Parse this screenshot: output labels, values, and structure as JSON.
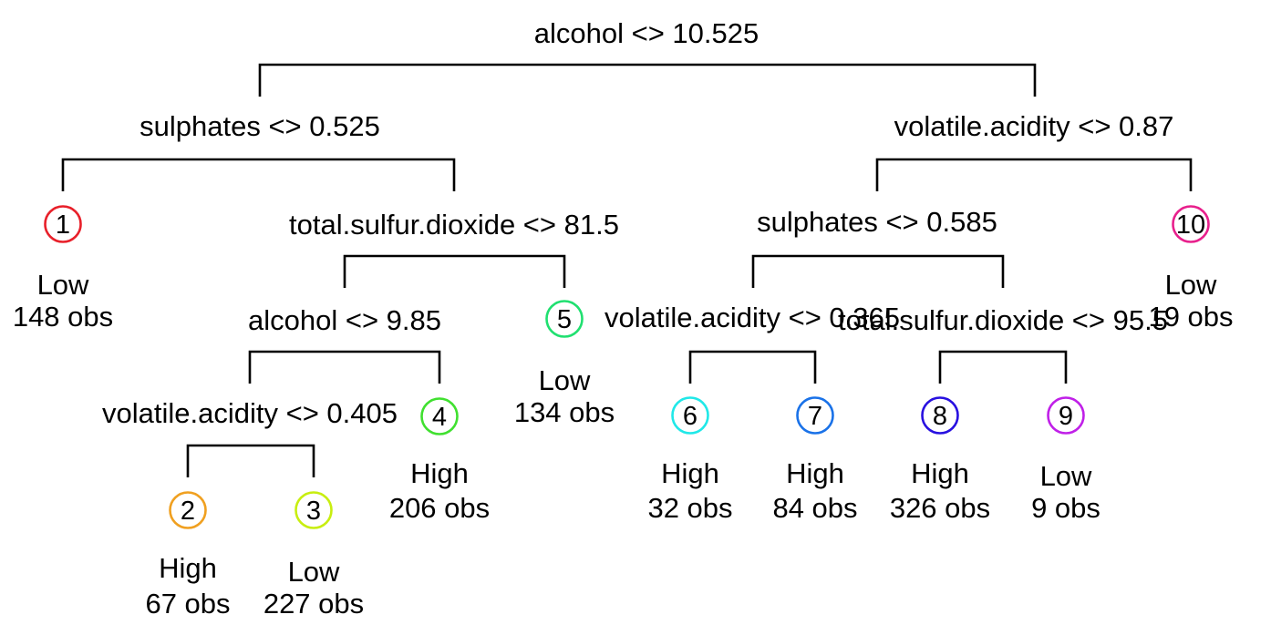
{
  "tree": {
    "splits": [
      {
        "id": "root",
        "label": "alcohol <> 10.525"
      },
      {
        "id": "s-left",
        "label": "sulphates <> 0.525"
      },
      {
        "id": "s-right",
        "label": "volatile.acidity <> 0.87"
      },
      {
        "id": "s-left-right",
        "label": "total.sulfur.dioxide <> 81.5"
      },
      {
        "id": "s-right-left",
        "label": "sulphates <> 0.585"
      },
      {
        "id": "s-lrl",
        "label": "alcohol <> 9.85"
      },
      {
        "id": "s-rll",
        "label": "volatile.acidity <> 0.365"
      },
      {
        "id": "s-rlr",
        "label": "total.sulfur.dioxide <> 95.5"
      },
      {
        "id": "s-lrll",
        "label": "volatile.acidity <> 0.405"
      }
    ],
    "leaves": [
      {
        "number": "1",
        "class": "Low",
        "obs": "148 obs",
        "color": "#e8202a"
      },
      {
        "number": "2",
        "class": "High",
        "obs": "67 obs",
        "color": "#f0a020"
      },
      {
        "number": "3",
        "class": "Low",
        "obs": "227 obs",
        "color": "#c8ee10"
      },
      {
        "number": "4",
        "class": "High",
        "obs": "206 obs",
        "color": "#40e030"
      },
      {
        "number": "5",
        "class": "Low",
        "obs": "134 obs",
        "color": "#20e070"
      },
      {
        "number": "6",
        "class": "High",
        "obs": "32 obs",
        "color": "#20e8e8"
      },
      {
        "number": "7",
        "class": "High",
        "obs": "84 obs",
        "color": "#1a72e8"
      },
      {
        "number": "8",
        "class": "High",
        "obs": "326 obs",
        "color": "#2810e0"
      },
      {
        "number": "9",
        "class": "Low",
        "obs": "9 obs",
        "color": "#c020e8"
      },
      {
        "number": "10",
        "class": "Low",
        "obs": "19 obs",
        "color": "#e8208c"
      }
    ]
  }
}
